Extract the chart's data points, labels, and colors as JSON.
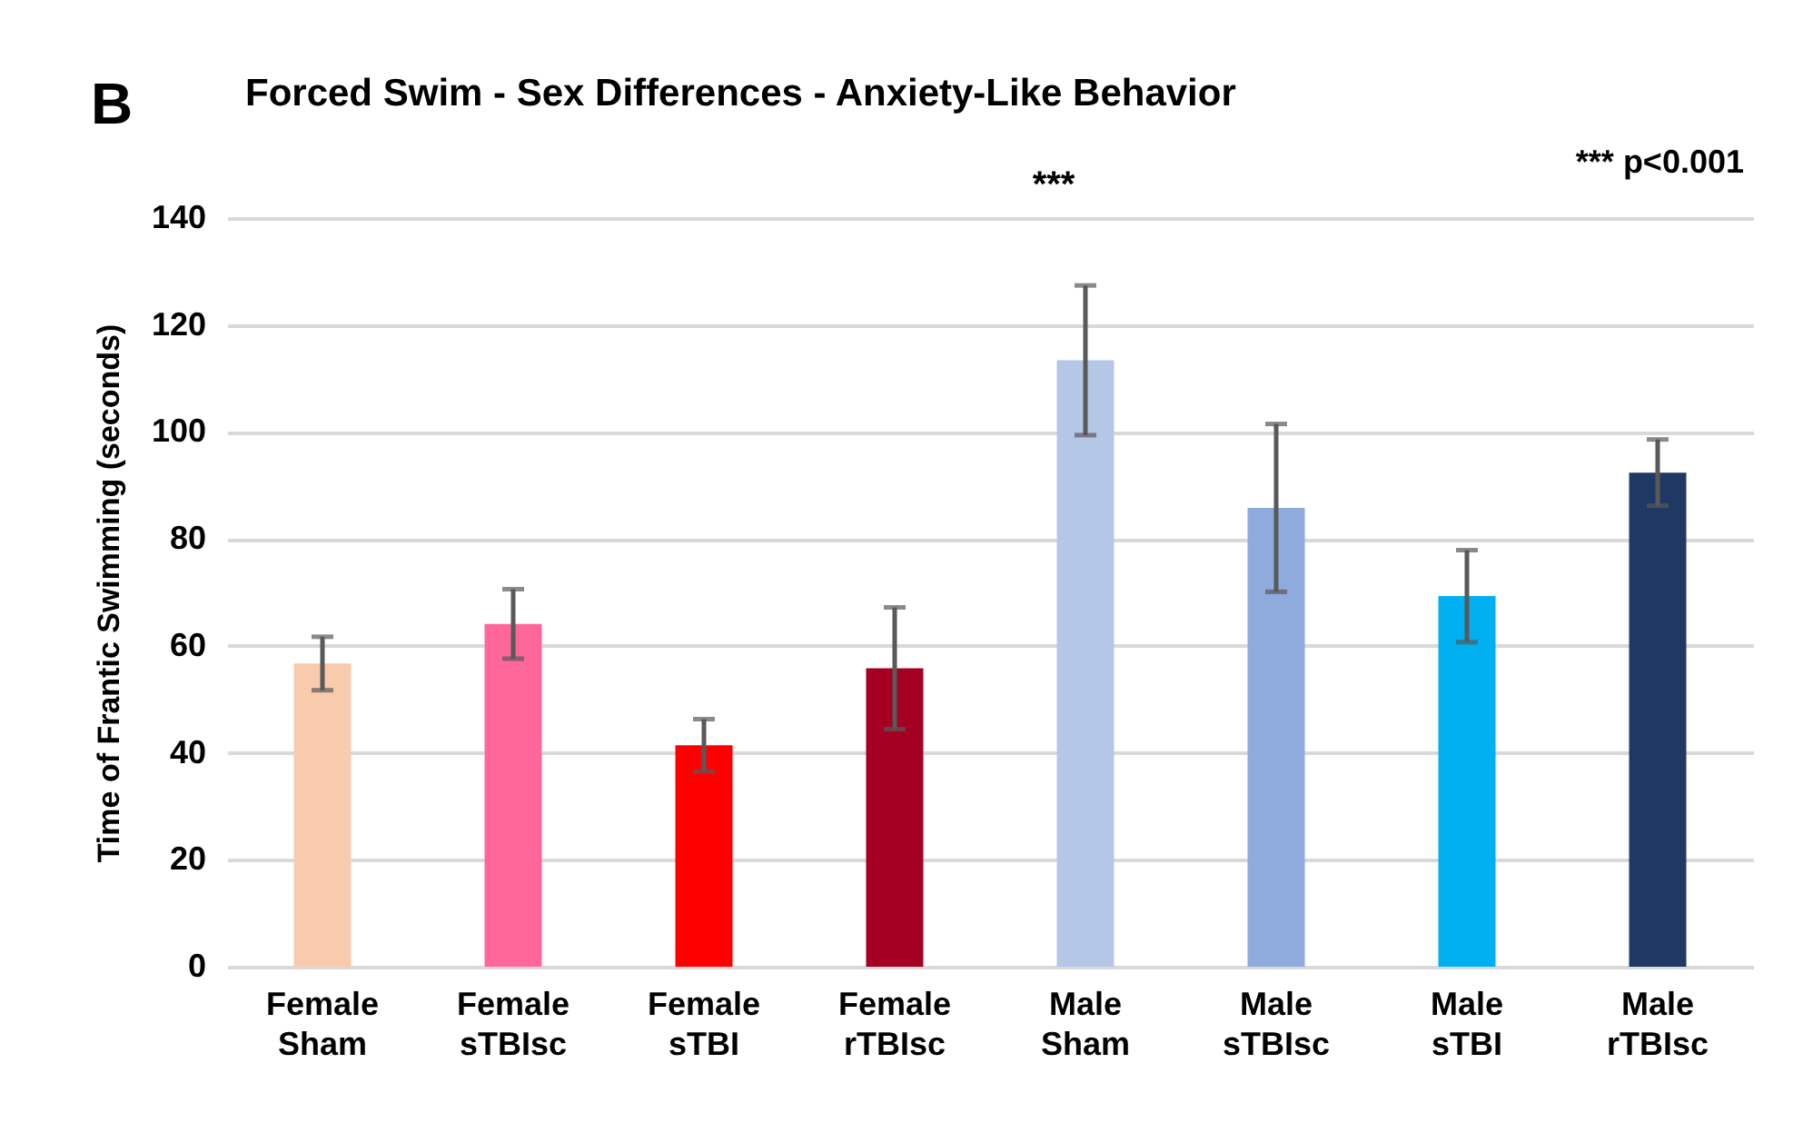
{
  "chart_data": {
    "type": "bar",
    "title": "Forced Swim - Sex Differences - Anxiety-Like Behavior",
    "ylabel": "Time of Frantic Swimming (seconds)",
    "categories": [
      "Female Sham",
      "Female sTBIsc",
      "Female sTBI",
      "Female rTBIsc",
      "Male Sham",
      "Male sTBIsc",
      "Male sTBI",
      "Male rTBIsc"
    ],
    "values": [
      56.7,
      64.1,
      41.4,
      55.8,
      113.4,
      85.8,
      69.3,
      92.4
    ],
    "errors": [
      5,
      6.5,
      4.9,
      11.4,
      14,
      15.7,
      8.6,
      6.2
    ],
    "colors": [
      "#f8cbad",
      "#ff6699",
      "#ff0000",
      "#a50021",
      "#b4c7e7",
      "#8faadc",
      "#00b0f0",
      "#203864"
    ],
    "ylim": [
      0,
      140
    ],
    "yticks": [
      0,
      20,
      40,
      60,
      80,
      100,
      120,
      140
    ],
    "grid": "y",
    "annotations": [
      "B",
      "***",
      "*** p<0.001"
    ]
  }
}
